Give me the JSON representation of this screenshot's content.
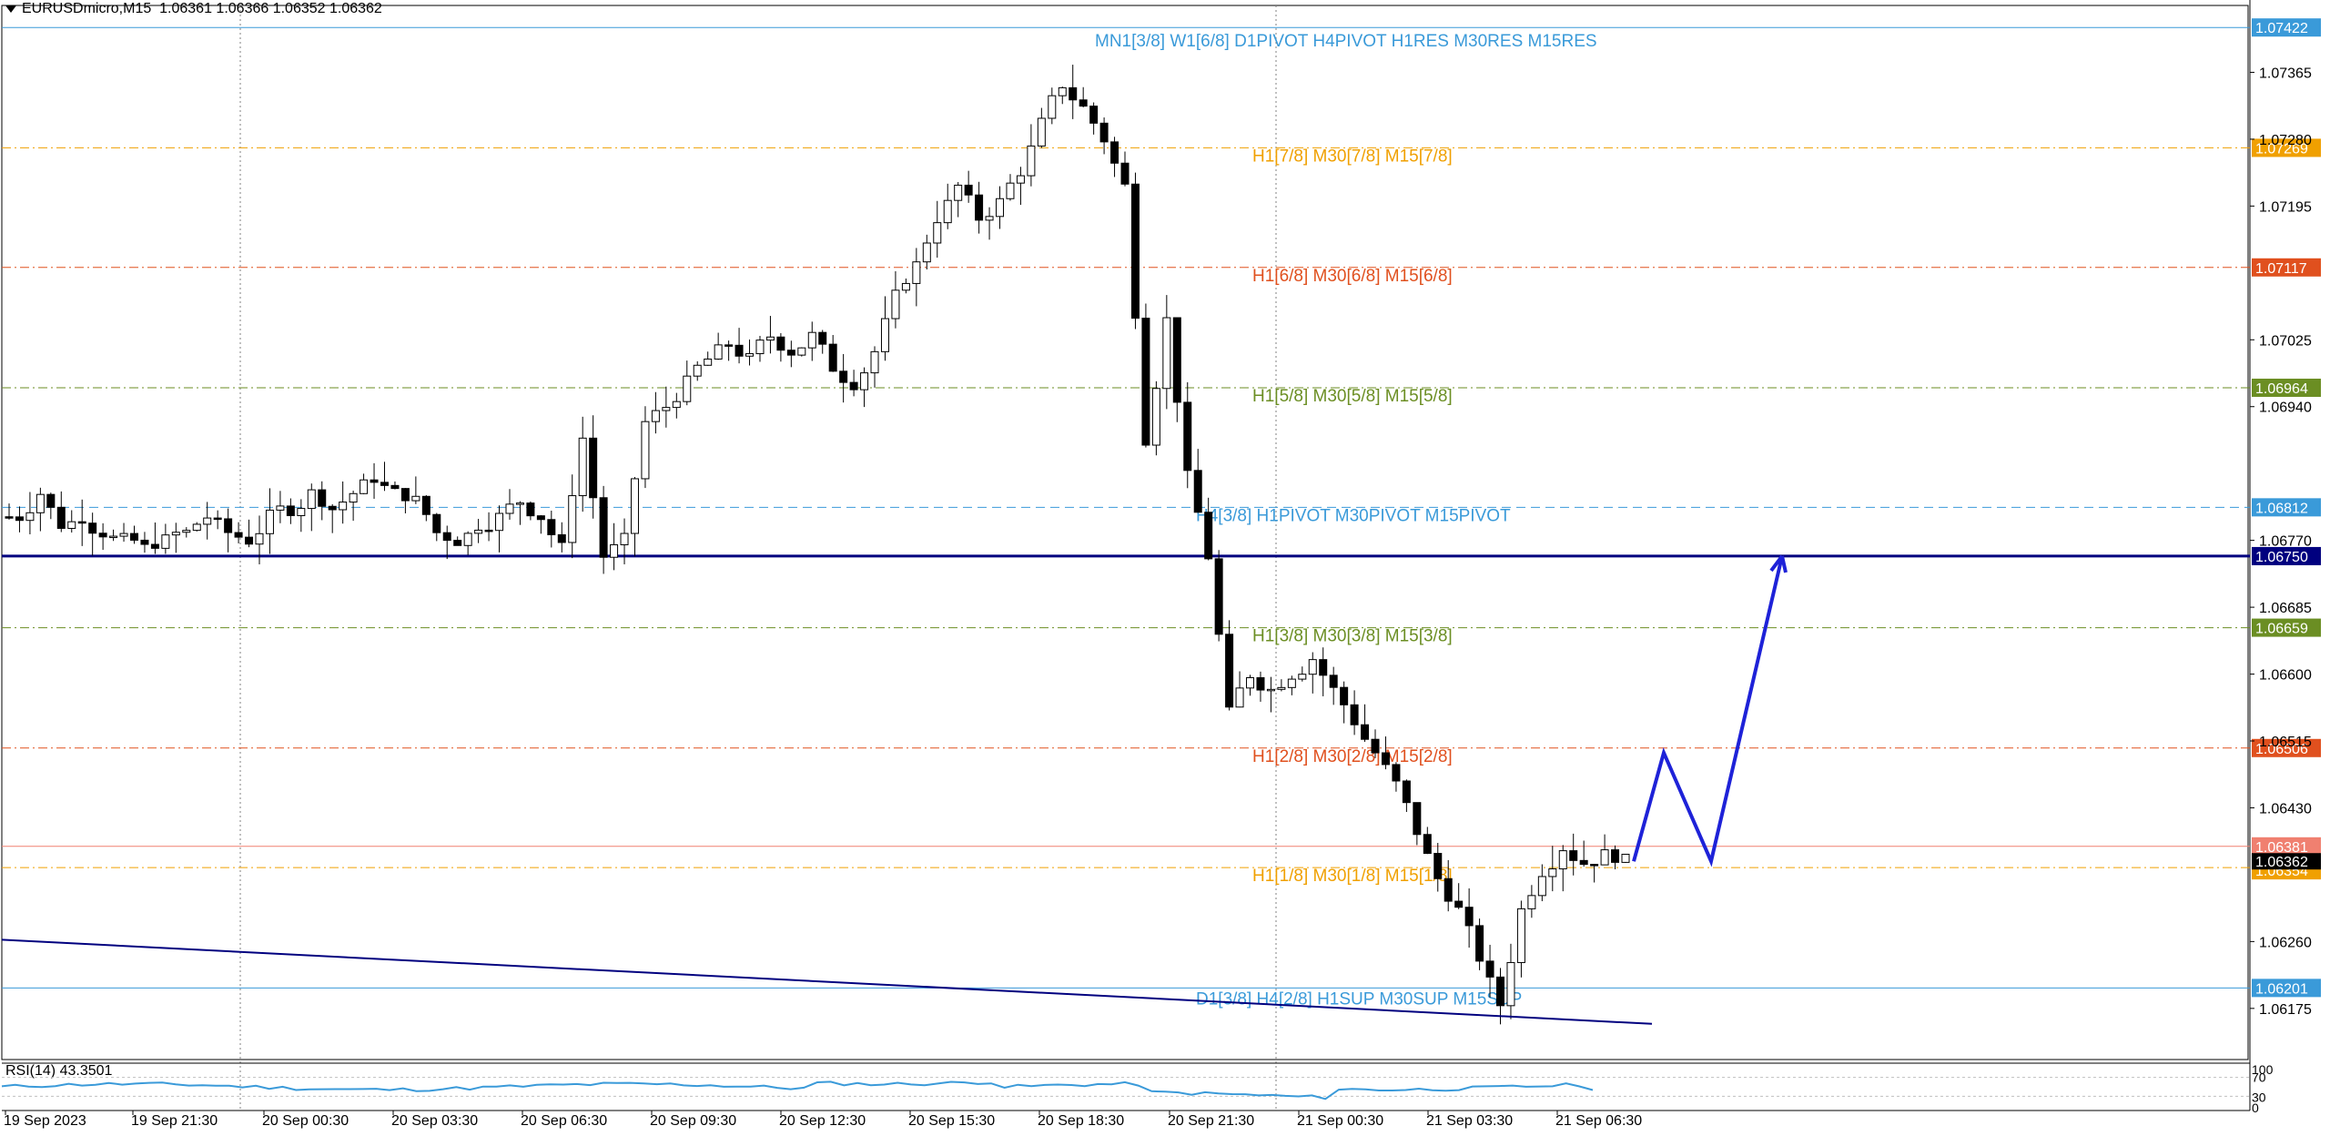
{
  "header": {
    "symbol": "EURUSDmicro,M15",
    "ohlc": "1.06361 1.06366 1.06352 1.06362"
  },
  "rsi_header": "RSI(14) 43.3501",
  "chart_data": {
    "type": "candlestick",
    "symbol": "EURUSDmicro",
    "timeframe": "M15",
    "ylim": [
      1.0611,
      1.0745
    ],
    "y_ticks": [
      "1.07365",
      "1.07280",
      "1.07195",
      "1.07025",
      "1.06940",
      "1.06770",
      "1.06685",
      "1.06600",
      "1.06515",
      "1.06430",
      "1.06260",
      "1.06175"
    ],
    "x_ticks": [
      "19 Sep 2023",
      "19 Sep 21:30",
      "20 Sep 00:30",
      "20 Sep 03:30",
      "20 Sep 06:30",
      "20 Sep 09:30",
      "20 Sep 12:30",
      "20 Sep 15:30",
      "20 Sep 18:30",
      "20 Sep 21:30",
      "21 Sep 00:30",
      "21 Sep 03:30",
      "21 Sep 06:30"
    ],
    "close_path": [
      1.068,
      1.0683,
      1.0679,
      1.068,
      1.0678,
      1.0677,
      1.0676,
      1.0677,
      1.0678,
      1.068,
      1.0678,
      1.0677,
      1.068,
      1.0681,
      1.0683,
      1.0681,
      1.0683,
      1.0685,
      1.0683,
      1.0682,
      1.0678,
      1.0677,
      1.0679,
      1.068,
      1.0682,
      1.068,
      1.0676,
      1.069,
      1.0675,
      1.0677,
      1.0692,
      1.0694,
      1.0697,
      1.07,
      1.0702,
      1.07,
      1.0703,
      1.0701,
      1.0703,
      1.0699,
      1.0697,
      1.0701,
      1.0708,
      1.0712,
      1.0718,
      1.0722,
      1.0718,
      1.072,
      1.0724,
      1.073,
      1.0735,
      1.0732,
      1.0728,
      1.0722,
      1.069,
      1.0705,
      1.0685,
      1.0675,
      1.0655,
      1.066,
      1.0658,
      1.066,
      1.0662,
      1.0658,
      1.0654,
      1.065,
      1.0646,
      1.064,
      1.0634,
      1.063,
      1.0624,
      1.0618,
      1.063,
      1.0635,
      1.0638,
      1.0636,
      1.0637,
      1.06362
    ],
    "horizontal_levels": [
      {
        "price": 1.07422,
        "label": "MN1[3/8] W1[6/8] D1PIVOT H4PIVOT H1RES M30RES M15RES",
        "color": "#3a9ad9",
        "style": "solid",
        "tag": "1.07422"
      },
      {
        "price": 1.07269,
        "label": "H1[7/8] M30[7/8] M15[7/8]",
        "color": "#f0a000",
        "style": "dashdot",
        "tag": "1.07269"
      },
      {
        "price": 1.07117,
        "label": "H1[6/8] M30[6/8] M15[6/8]",
        "color": "#e0501e",
        "style": "dashdot",
        "tag": "1.07117"
      },
      {
        "price": 1.06964,
        "label": "H1[5/8] M30[5/8] M15[5/8]",
        "color": "#6b8e23",
        "style": "dashdot",
        "tag": "1.06964"
      },
      {
        "price": 1.06812,
        "label": "H4[3/8] H1PIVOT M30PIVOT M15PIVOT",
        "color": "#3a9ad9",
        "style": "dash",
        "tag": "1.06812"
      },
      {
        "price": 1.0675,
        "label": "",
        "color": "#00007f",
        "style": "solid-thick",
        "tag": "1.06750"
      },
      {
        "price": 1.06659,
        "label": "H1[3/8] M30[3/8] M15[3/8]",
        "color": "#6b8e23",
        "style": "dashdot",
        "tag": "1.06659"
      },
      {
        "price": 1.06506,
        "label": "H1[2/8] M30[2/8] M15[2/8]",
        "color": "#e0501e",
        "style": "dashdot",
        "tag": "1.06506"
      },
      {
        "price": 1.06381,
        "label": "",
        "color": "#f08070",
        "style": "solid-thin",
        "tag": "1.06381"
      },
      {
        "price": 1.06354,
        "label": "H1[1/8] M30[1/8] M15[1/8]",
        "color": "#f0a000",
        "style": "dashdot",
        "tag": "1.06354"
      },
      {
        "price": 1.06201,
        "label": "D1[3/8] H4[2/8] H1SUP M30SUP M15SUP",
        "color": "#3a9ad9",
        "style": "solid-thin",
        "tag": "1.06201"
      }
    ],
    "current_price": {
      "value": 1.06362,
      "tag": "1.06362"
    },
    "projection_path": [
      1.06362,
      1.065,
      1.06362,
      1.0675
    ],
    "trendline": {
      "from": 1.0626,
      "to": 1.0616,
      "color": "#00007f"
    },
    "rsi": {
      "period": 14,
      "value": 43.3501,
      "levels": [
        "100",
        "70",
        "30",
        "0"
      ]
    }
  },
  "colors": {
    "tag_text_light": "#ffffff",
    "bull_fill": "#ffffff",
    "bear_fill": "#000000",
    "projection": "#1e22d8",
    "rsi_line": "#3a9ad9"
  }
}
